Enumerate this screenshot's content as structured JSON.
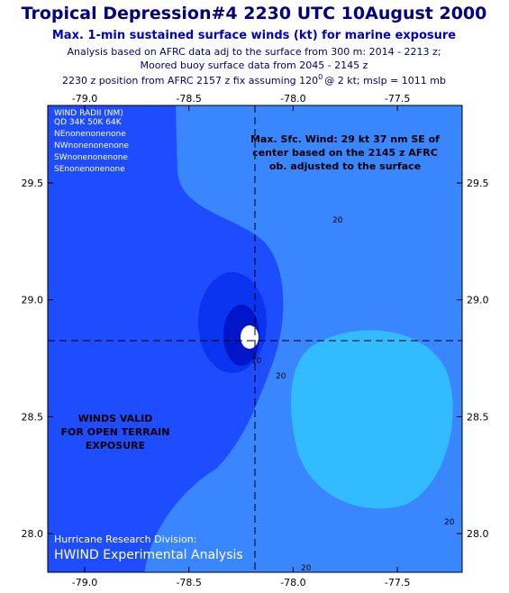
{
  "header": {
    "title": "Tropical Depression#4 2230 UTC 10August 2000",
    "subtitle": "Max. 1-min sustained surface winds (kt) for marine exposure",
    "lines": [
      "Analysis based on AFRC data adj to the surface from 300 m: 2014 - 2213 z;",
      "Moored buoy surface data from 2045 - 2145 z"
    ],
    "position": {
      "before": "2230 z position from AFRC 2157 z  fix assuming 120",
      "sup": "0",
      "after": "@ 2 kt; mslp = 1011 mb"
    }
  },
  "map": {
    "x_ticks": [
      "-79.0",
      "-78.5",
      "-78.0",
      "-77.5"
    ],
    "y_ticks": [
      "29.5",
      "29.0",
      "28.5",
      "28.0"
    ],
    "wind_radii": [
      "WIND RADII (NM)",
      "QD 34K 50K 64K",
      "NEnonenonenone",
      "NWnonenonenone",
      "SWnonenonenone",
      "SEnonenonenone"
    ],
    "max_wind_note": [
      "Max. Sfc. Wind: 29 kt 37 nm SE of",
      "center based on the 2145 z AFRC",
      "ob. adjusted to the surface"
    ],
    "validity_note": [
      "WINDS VALID",
      "FOR OPEN TERRAIN",
      "EXPOSURE"
    ],
    "contour_labels": [
      "20",
      "20",
      "10",
      "20",
      "20"
    ],
    "credit": [
      "Hurricane Research Division:",
      "HWIND Experimental Analysis"
    ]
  }
}
